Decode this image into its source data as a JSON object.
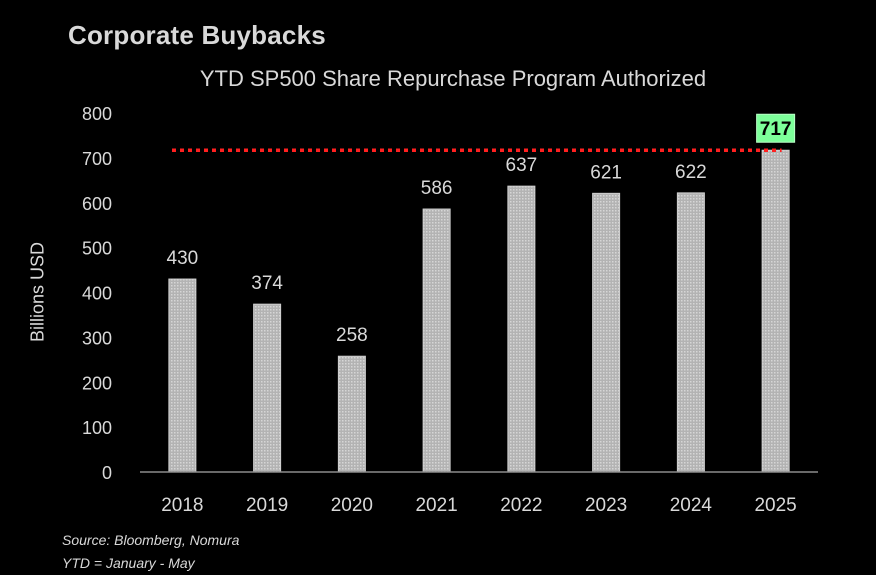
{
  "chart_data": {
    "type": "bar",
    "title": "Corporate Buybacks",
    "subtitle": "YTD SP500 Share Repurchase Program Authorized",
    "xlabel": "",
    "ylabel": "Billions USD",
    "categories": [
      "2018",
      "2019",
      "2020",
      "2021",
      "2022",
      "2023",
      "2024",
      "2025"
    ],
    "series": [
      {
        "values": [
          430,
          374,
          258,
          586,
          637,
          621,
          622,
          717
        ]
      }
    ],
    "data_labels": [
      "430",
      "374",
      "258",
      "586",
      "637",
      "621",
      "622",
      "717"
    ],
    "ylim": [
      0,
      800
    ],
    "yticks": [
      "0",
      "100",
      "200",
      "300",
      "400",
      "500",
      "600",
      "700",
      "800"
    ],
    "grid": false,
    "legend": "none",
    "reference_line": {
      "value": 717,
      "style": "dotted",
      "color": "#ff2020"
    },
    "highlight": {
      "category": "2025",
      "label": "717",
      "color": "#7dff9a"
    },
    "bar_color": "#b5b5b5"
  },
  "notes": {
    "source": "Source: Bloomberg, Nomura",
    "ytd": "YTD = January - May"
  }
}
